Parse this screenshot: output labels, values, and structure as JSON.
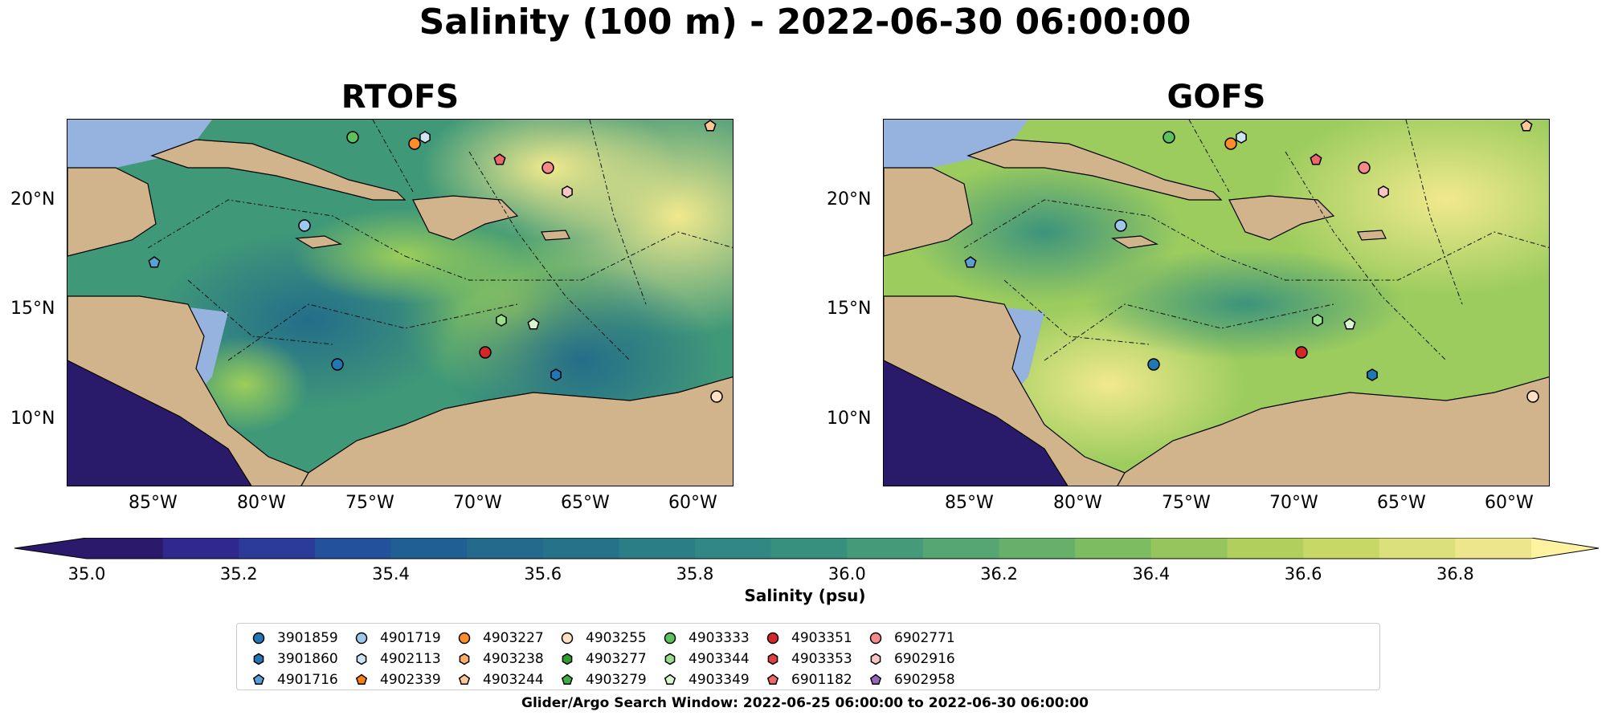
{
  "title": "Salinity (100 m) - 2022-06-30 06:00:00",
  "panels": [
    {
      "title": "RTOFS"
    },
    {
      "title": "GOFS"
    }
  ],
  "axes": {
    "lon_labels": [
      "85°W",
      "80°W",
      "75°W",
      "70°W",
      "65°W",
      "60°W"
    ],
    "lat_labels": [
      "20°N",
      "15°N",
      "10°N"
    ]
  },
  "colorbar": {
    "label": "Salinity (psu)",
    "ticks": [
      "35.0",
      "35.2",
      "35.4",
      "35.6",
      "35.8",
      "36.0",
      "36.2",
      "36.4",
      "36.6",
      "36.8"
    ],
    "min": 35.0,
    "max": 36.9,
    "colors": [
      "#2b1a6b",
      "#30288f",
      "#2c3a9a",
      "#23519c",
      "#1f5f93",
      "#236a8d",
      "#267389",
      "#2b7d86",
      "#308783",
      "#37907e",
      "#459b79",
      "#55a673",
      "#67b06a",
      "#7ebc62",
      "#96c45d",
      "#b0cf5c",
      "#c7d866",
      "#dbe07a",
      "#eee68c"
    ],
    "over_color": "#fff2a0",
    "under_color": "#2b1a6b"
  },
  "map_colors": {
    "land": "#d2b48c",
    "shelf": "#96b3e0",
    "pacific": "#2a1b6a",
    "rtofs_sea": "#3f9878",
    "gofs_sea": "#9ccc5e"
  },
  "legend": {
    "items": [
      {
        "id": "3901859",
        "marker": "circle",
        "color": "#1f77b4"
      },
      {
        "id": "3901860",
        "marker": "hexagon",
        "color": "#1f77b4"
      },
      {
        "id": "4901716",
        "marker": "pentagon",
        "color": "#5aa0d8"
      },
      {
        "id": "4901719",
        "marker": "circle",
        "color": "#9dc8ee"
      },
      {
        "id": "4902113",
        "marker": "hexagon",
        "color": "#cde4f7"
      },
      {
        "id": "4902339",
        "marker": "pentagon",
        "color": "#ff7f0e"
      },
      {
        "id": "4903227",
        "marker": "circle",
        "color": "#ff8c2a"
      },
      {
        "id": "4903238",
        "marker": "hexagon",
        "color": "#ffae63"
      },
      {
        "id": "4903244",
        "marker": "pentagon",
        "color": "#ffc795"
      },
      {
        "id": "4903255",
        "marker": "circle",
        "color": "#ffe0c0"
      },
      {
        "id": "4903277",
        "marker": "hexagon",
        "color": "#2ca02c"
      },
      {
        "id": "4903279",
        "marker": "pentagon",
        "color": "#3cb043"
      },
      {
        "id": "4903333",
        "marker": "circle",
        "color": "#5cc25c"
      },
      {
        "id": "4903344",
        "marker": "hexagon",
        "color": "#98df8a"
      },
      {
        "id": "4903349",
        "marker": "pentagon",
        "color": "#d8f5d0"
      },
      {
        "id": "4903351",
        "marker": "circle",
        "color": "#d62728"
      },
      {
        "id": "4903353",
        "marker": "hexagon",
        "color": "#e0403e"
      },
      {
        "id": "6901182",
        "marker": "pentagon",
        "color": "#f0666a"
      },
      {
        "id": "6902771",
        "marker": "circle",
        "color": "#f48a8a"
      },
      {
        "id": "6902916",
        "marker": "hexagon",
        "color": "#fbc5c5"
      },
      {
        "id": "6902958",
        "marker": "pentagon",
        "color": "#9467bd"
      }
    ]
  },
  "search_window": "Glider/Argo Search Window: 2022-06-25 06:00:00 to 2022-06-30 06:00:00"
}
